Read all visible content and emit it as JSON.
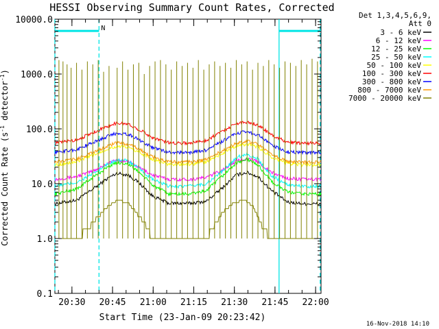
{
  "chart_data": {
    "type": "line",
    "title": "HESSI Observing Summary Count Rates, Corrected",
    "xlabel": "Start Time (23-Jan-09 20:23:42)",
    "ylabel": "Corrected Count Rate (s",
    "ylabel_sup": "-1",
    "ylabel_tail": " detector",
    "ylabel_sup2": "-1",
    "ylabel_end": ")",
    "y_scale": "log",
    "ylim": [
      0.1,
      10000
    ],
    "y_ticks": [
      {
        "v": 0.1,
        "label": "0.1"
      },
      {
        "v": 1,
        "label": "1.0"
      },
      {
        "v": 10,
        "label": "10.0"
      },
      {
        "v": 100,
        "label": "100.0"
      },
      {
        "v": 1000,
        "label": "1000.0"
      },
      {
        "v": 10000,
        "label": "10000.0"
      }
    ],
    "x_units": "minutes after 20:23:42",
    "xlim": [
      0,
      98.3
    ],
    "x_ticks": [
      {
        "v": 6.3,
        "label": "20:30"
      },
      {
        "v": 21.3,
        "label": "20:45"
      },
      {
        "v": 36.3,
        "label": "21:00"
      },
      {
        "v": 51.3,
        "label": "21:15"
      },
      {
        "v": 66.3,
        "label": "21:30"
      },
      {
        "v": 81.3,
        "label": "21:45"
      },
      {
        "v": 96.3,
        "label": "22:00"
      }
    ],
    "legend_header": [
      "Det 1,3,4,5,6,9,",
      "Att 0"
    ],
    "legend_position": "right",
    "series": [
      {
        "name": "3 - 6 keV",
        "color": "#000000",
        "x": [
          0,
          8,
          14,
          20,
          23,
          27,
          31,
          36,
          42,
          50,
          56,
          62,
          67,
          71,
          75,
          80,
          86,
          92,
          98.3
        ],
        "y": [
          4.3,
          5.0,
          8.0,
          13.0,
          15.5,
          14.5,
          10.5,
          6.0,
          4.4,
          4.4,
          4.8,
          8.5,
          14.5,
          16.0,
          13.5,
          7.5,
          4.6,
          4.3,
          4.3
        ]
      },
      {
        "name": "6 - 12 keV",
        "color": "#ff00ff",
        "x": [
          0,
          8,
          14,
          20,
          23,
          27,
          31,
          36,
          42,
          50,
          56,
          62,
          67,
          71,
          75,
          80,
          86,
          92,
          98.3
        ],
        "y": [
          12.0,
          13.5,
          17.0,
          24.0,
          27.0,
          25.5,
          20.0,
          14.5,
          12.0,
          12.0,
          13.0,
          18.0,
          26.0,
          29.0,
          25.0,
          16.0,
          12.5,
          12.0,
          12.0
        ]
      },
      {
        "name": "12 - 25 keV",
        "color": "#00ff00",
        "x": [
          0,
          8,
          14,
          20,
          23,
          27,
          31,
          36,
          42,
          50,
          56,
          62,
          67,
          71,
          75,
          80,
          86,
          92,
          98.3
        ],
        "y": [
          6.5,
          8.0,
          13.0,
          21.0,
          24.5,
          23.0,
          16.5,
          9.5,
          6.5,
          6.5,
          7.5,
          14.0,
          24.0,
          28.0,
          22.0,
          11.0,
          7.0,
          6.5,
          6.5
        ]
      },
      {
        "name": "25 - 50 keV",
        "color": "#00ffff",
        "x": [
          0,
          8,
          14,
          20,
          23,
          27,
          31,
          36,
          42,
          50,
          56,
          62,
          67,
          71,
          75,
          80,
          86,
          92,
          98.3
        ],
        "y": [
          9.0,
          10.5,
          15.0,
          23.5,
          27.5,
          26.0,
          19.0,
          12.0,
          9.0,
          9.0,
          10.0,
          17.0,
          30.0,
          35.0,
          28.0,
          14.0,
          9.5,
          9.0,
          9.0
        ]
      },
      {
        "name": "50 - 100 keV",
        "color": "#ffff00",
        "x": [
          0,
          8,
          14,
          20,
          23,
          27,
          31,
          36,
          42,
          50,
          56,
          62,
          67,
          71,
          75,
          80,
          86,
          92,
          98.3
        ],
        "y": [
          22.0,
          25.0,
          33.0,
          44.0,
          48.0,
          46.0,
          38.0,
          28.0,
          22.5,
          22.5,
          25.0,
          36.0,
          48.0,
          53.0,
          46.0,
          31.0,
          23.0,
          22.0,
          22.0
        ]
      },
      {
        "name": "100 - 300 keV",
        "color": "#ff0000",
        "x": [
          0,
          8,
          14,
          20,
          23,
          27,
          31,
          36,
          42,
          50,
          56,
          62,
          67,
          71,
          75,
          80,
          86,
          92,
          98.3
        ],
        "y": [
          55.0,
          63.0,
          85.0,
          115.0,
          128.0,
          122.0,
          98.0,
          70.0,
          56.0,
          55.0,
          62.0,
          92.0,
          125.0,
          135.0,
          118.0,
          77.0,
          57.0,
          55.0,
          55.0
        ]
      },
      {
        "name": "300 - 800 keV",
        "color": "#0000ff",
        "x": [
          0,
          8,
          14,
          20,
          23,
          27,
          31,
          36,
          42,
          50,
          56,
          62,
          67,
          71,
          75,
          80,
          86,
          92,
          98.3
        ],
        "y": [
          37.0,
          42.0,
          56.0,
          75.0,
          84.0,
          80.0,
          64.0,
          46.0,
          37.5,
          37.0,
          41.0,
          60.0,
          82.0,
          90.0,
          78.0,
          51.0,
          38.0,
          37.0,
          37.0
        ]
      },
      {
        "name": "800 - 7000 keV",
        "color": "#ff9900",
        "x": [
          0,
          8,
          14,
          20,
          23,
          27,
          31,
          36,
          42,
          50,
          56,
          62,
          67,
          71,
          75,
          80,
          86,
          92,
          98.3
        ],
        "y": [
          25.0,
          28.0,
          37.0,
          50.0,
          56.0,
          53.0,
          43.0,
          31.0,
          25.0,
          25.0,
          27.5,
          40.0,
          55.0,
          60.0,
          52.0,
          34.0,
          25.5,
          25.0,
          25.0
        ]
      },
      {
        "name": "7000 - 20000 keV",
        "color": "#808000",
        "x": [
          0,
          8,
          12,
          16,
          20,
          23,
          27,
          30,
          33,
          36,
          42,
          50,
          56,
          58,
          62,
          66,
          70,
          73,
          75,
          77,
          80,
          86,
          92,
          98.3
        ],
        "y": [
          1.0,
          1.0,
          1.5,
          2.5,
          4.0,
          5.0,
          4.5,
          3.0,
          2.0,
          1.0,
          1.0,
          1.0,
          1.0,
          1.5,
          3.0,
          4.5,
          5.0,
          4.0,
          2.5,
          1.5,
          1.0,
          1.0,
          1.0,
          1.0
        ],
        "spikes_x": [
          1.5,
          3,
          4.5,
          6,
          8,
          10,
          12,
          14,
          16,
          18,
          20,
          23,
          25,
          27,
          29,
          31,
          33,
          35,
          37,
          39,
          41,
          43,
          45,
          47,
          49,
          51,
          53,
          55,
          57,
          59,
          61,
          63,
          65,
          67,
          69,
          71,
          73,
          75,
          77,
          79,
          81,
          83,
          85,
          87,
          89,
          91,
          93,
          95,
          97
        ],
        "spikes_y": [
          1800,
          1700,
          1500,
          1300,
          1600,
          1200,
          1700,
          1500,
          1800,
          1100,
          1400,
          1300,
          1700,
          1200,
          1500,
          1600,
          1000,
          1400,
          1700,
          1800,
          1500,
          1200,
          1700,
          1400,
          1600,
          1300,
          1800,
          1200,
          1500,
          1700,
          1400,
          1600,
          1300,
          1800,
          1500,
          1700,
          1200,
          1600,
          1400,
          1800,
          1500,
          1300,
          1700,
          1600,
          1400,
          1800,
          1500,
          1900,
          1700
        ]
      }
    ],
    "flag_segments": [
      {
        "label": "N",
        "x0": 0,
        "x1": 16.3,
        "y": 6100
      },
      {
        "label": "",
        "x0": 82.8,
        "x1": 98.3,
        "y": 6100
      }
    ],
    "vertical_markers": [
      {
        "x": 0,
        "style": "dashed"
      },
      {
        "x": 16.3,
        "style": "dashed"
      },
      {
        "x": 82.8,
        "style": "solid"
      },
      {
        "x": 98.0,
        "style": "dashed"
      }
    ],
    "marker_color": "#00e5e5"
  },
  "footer_timestamp": "16-Nov-2018 14:10"
}
